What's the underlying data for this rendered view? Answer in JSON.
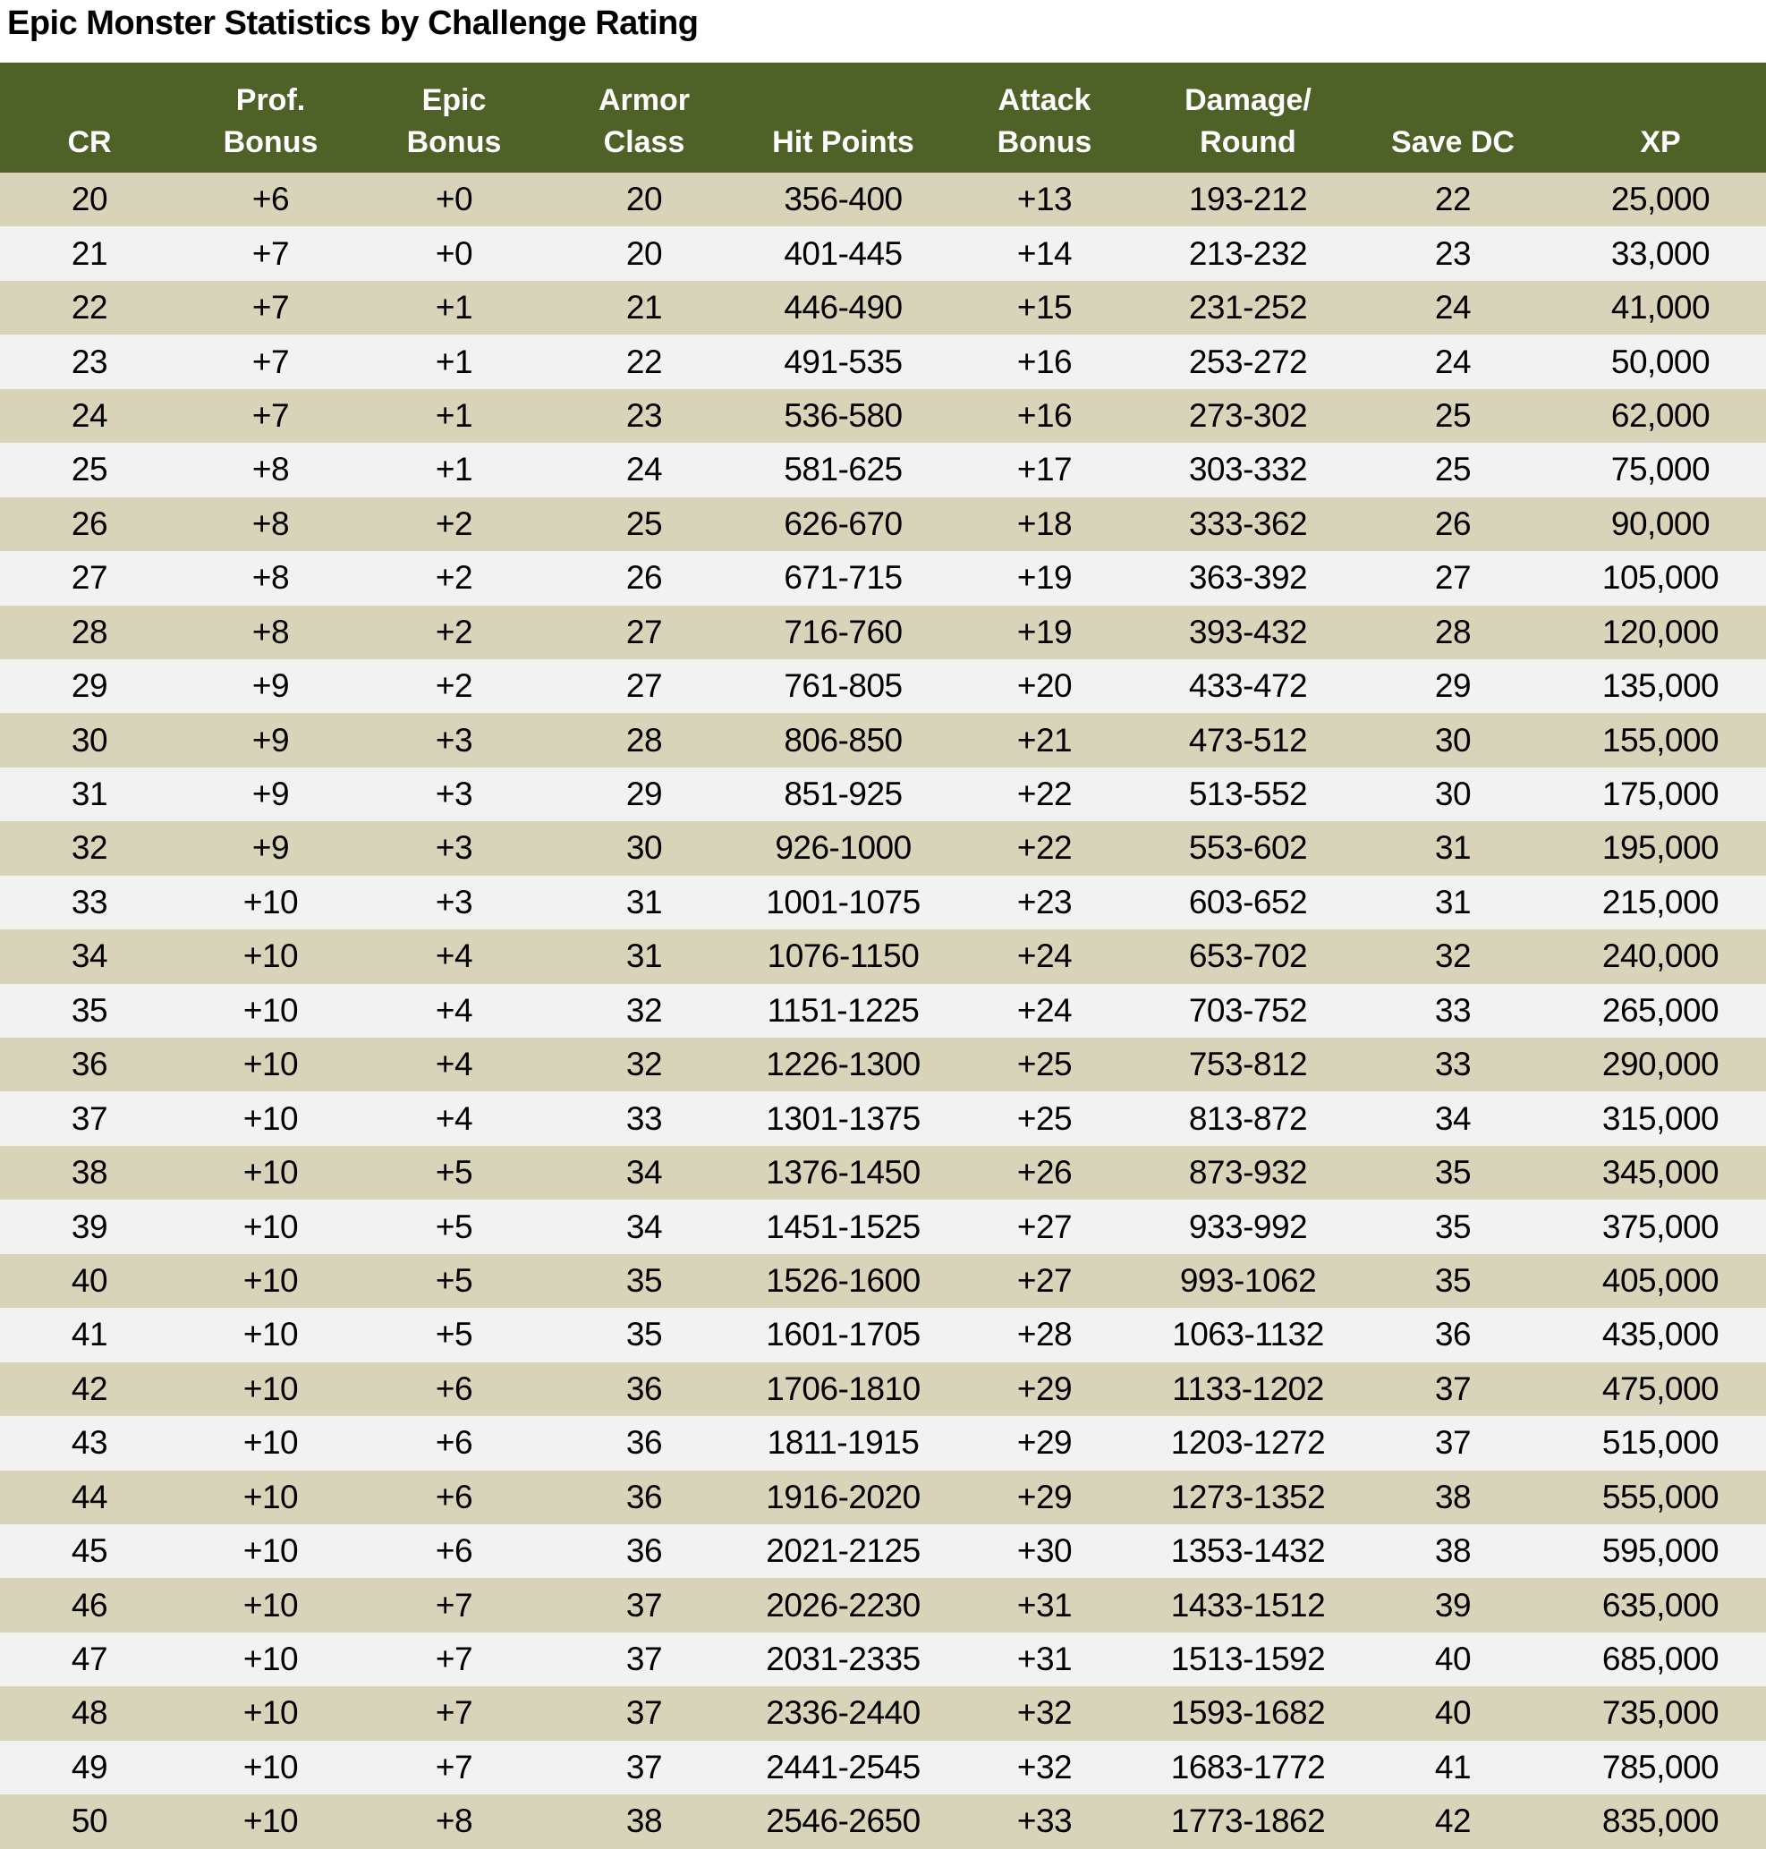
{
  "page": {
    "title": "Epic Monster Statistics by Challenge Rating"
  },
  "colors": {
    "header_bg": "#4e6227",
    "header_text": "#ffffff",
    "row_tan": "#d8d4ba",
    "row_gray": "#f2f2f2",
    "page_bg": "#ffffff",
    "text": "#000000"
  },
  "table": {
    "columns": [
      {
        "id": "cr",
        "label": "CR"
      },
      {
        "id": "prof-bonus",
        "label": "Prof.\nBonus"
      },
      {
        "id": "epic-bonus",
        "label": "Epic\nBonus"
      },
      {
        "id": "armor-class",
        "label": "Armor\nClass"
      },
      {
        "id": "hit-points",
        "label": "Hit Points"
      },
      {
        "id": "attack-bonus",
        "label": "Attack\nBonus"
      },
      {
        "id": "damage-round",
        "label": "Damage/\nRound"
      },
      {
        "id": "save-dc",
        "label": "Save DC"
      },
      {
        "id": "xp",
        "label": "XP"
      }
    ],
    "rows": [
      [
        "20",
        "+6",
        "+0",
        "20",
        "356-400",
        "+13",
        "193-212",
        "22",
        "25,000"
      ],
      [
        "21",
        "+7",
        "+0",
        "20",
        "401-445",
        "+14",
        "213-232",
        "23",
        "33,000"
      ],
      [
        "22",
        "+7",
        "+1",
        "21",
        "446-490",
        "+15",
        "231-252",
        "24",
        "41,000"
      ],
      [
        "23",
        "+7",
        "+1",
        "22",
        "491-535",
        "+16",
        "253-272",
        "24",
        "50,000"
      ],
      [
        "24",
        "+7",
        "+1",
        "23",
        "536-580",
        "+16",
        "273-302",
        "25",
        "62,000"
      ],
      [
        "25",
        "+8",
        "+1",
        "24",
        "581-625",
        "+17",
        "303-332",
        "25",
        "75,000"
      ],
      [
        "26",
        "+8",
        "+2",
        "25",
        "626-670",
        "+18",
        "333-362",
        "26",
        "90,000"
      ],
      [
        "27",
        "+8",
        "+2",
        "26",
        "671-715",
        "+19",
        "363-392",
        "27",
        "105,000"
      ],
      [
        "28",
        "+8",
        "+2",
        "27",
        "716-760",
        "+19",
        "393-432",
        "28",
        "120,000"
      ],
      [
        "29",
        "+9",
        "+2",
        "27",
        "761-805",
        "+20",
        "433-472",
        "29",
        "135,000"
      ],
      [
        "30",
        "+9",
        "+3",
        "28",
        "806-850",
        "+21",
        "473-512",
        "30",
        "155,000"
      ],
      [
        "31",
        "+9",
        "+3",
        "29",
        "851-925",
        "+22",
        "513-552",
        "30",
        "175,000"
      ],
      [
        "32",
        "+9",
        "+3",
        "30",
        "926-1000",
        "+22",
        "553-602",
        "31",
        "195,000"
      ],
      [
        "33",
        "+10",
        "+3",
        "31",
        "1001-1075",
        "+23",
        "603-652",
        "31",
        "215,000"
      ],
      [
        "34",
        "+10",
        "+4",
        "31",
        "1076-1150",
        "+24",
        "653-702",
        "32",
        "240,000"
      ],
      [
        "35",
        "+10",
        "+4",
        "32",
        "1151-1225",
        "+24",
        "703-752",
        "33",
        "265,000"
      ],
      [
        "36",
        "+10",
        "+4",
        "32",
        "1226-1300",
        "+25",
        "753-812",
        "33",
        "290,000"
      ],
      [
        "37",
        "+10",
        "+4",
        "33",
        "1301-1375",
        "+25",
        "813-872",
        "34",
        "315,000"
      ],
      [
        "38",
        "+10",
        "+5",
        "34",
        "1376-1450",
        "+26",
        "873-932",
        "35",
        "345,000"
      ],
      [
        "39",
        "+10",
        "+5",
        "34",
        "1451-1525",
        "+27",
        "933-992",
        "35",
        "375,000"
      ],
      [
        "40",
        "+10",
        "+5",
        "35",
        "1526-1600",
        "+27",
        "993-1062",
        "35",
        "405,000"
      ],
      [
        "41",
        "+10",
        "+5",
        "35",
        "1601-1705",
        "+28",
        "1063-1132",
        "36",
        "435,000"
      ],
      [
        "42",
        "+10",
        "+6",
        "36",
        "1706-1810",
        "+29",
        "1133-1202",
        "37",
        "475,000"
      ],
      [
        "43",
        "+10",
        "+6",
        "36",
        "1811-1915",
        "+29",
        "1203-1272",
        "37",
        "515,000"
      ],
      [
        "44",
        "+10",
        "+6",
        "36",
        "1916-2020",
        "+29",
        "1273-1352",
        "38",
        "555,000"
      ],
      [
        "45",
        "+10",
        "+6",
        "36",
        "2021-2125",
        "+30",
        "1353-1432",
        "38",
        "595,000"
      ],
      [
        "46",
        "+10",
        "+7",
        "37",
        "2026-2230",
        "+31",
        "1433-1512",
        "39",
        "635,000"
      ],
      [
        "47",
        "+10",
        "+7",
        "37",
        "2031-2335",
        "+31",
        "1513-1592",
        "40",
        "685,000"
      ],
      [
        "48",
        "+10",
        "+7",
        "37",
        "2336-2440",
        "+32",
        "1593-1682",
        "40",
        "735,000"
      ],
      [
        "49",
        "+10",
        "+7",
        "37",
        "2441-2545",
        "+32",
        "1683-1772",
        "41",
        "785,000"
      ],
      [
        "50",
        "+10",
        "+8",
        "38",
        "2546-2650",
        "+33",
        "1773-1862",
        "42",
        "835,000"
      ]
    ]
  }
}
